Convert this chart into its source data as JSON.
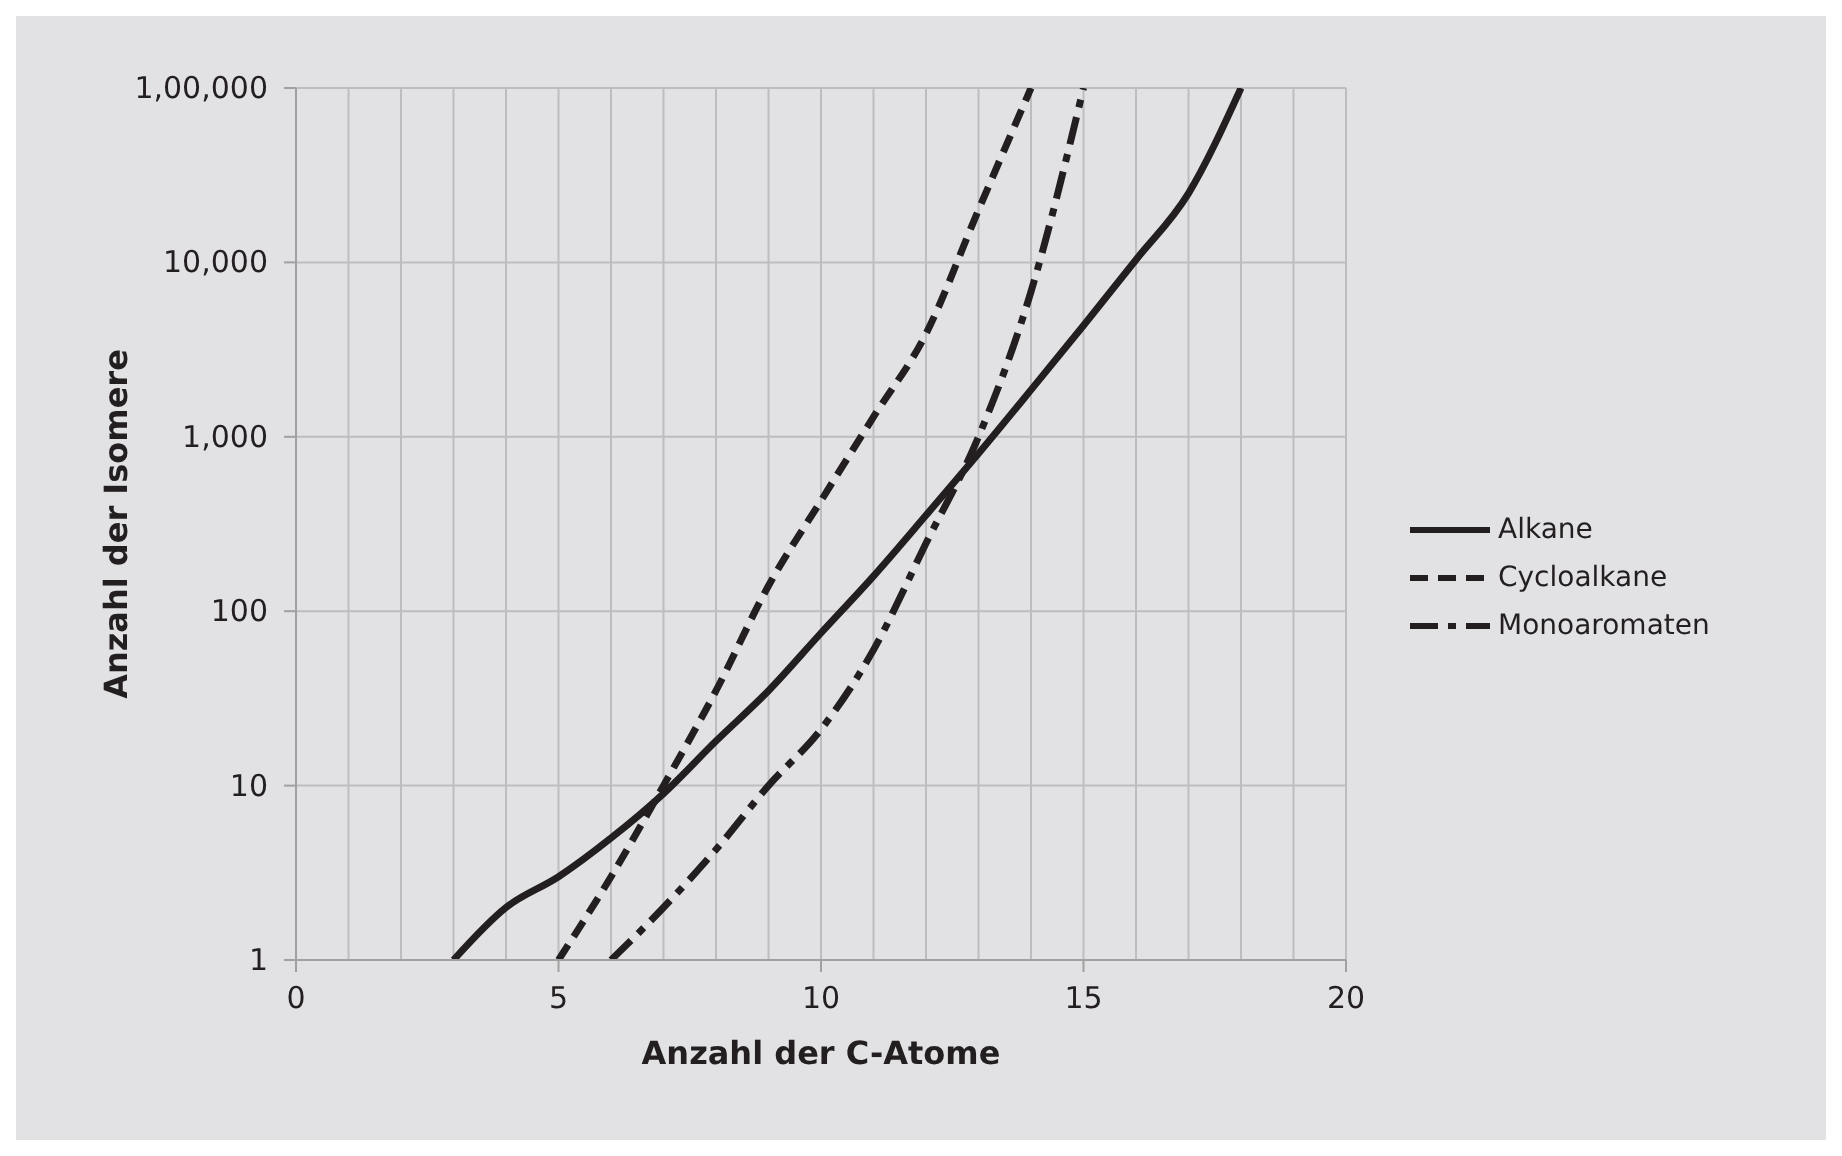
{
  "chart_data": {
    "type": "line",
    "xlabel": "Anzahl der C-Atome",
    "ylabel": "Anzahl der Isomere",
    "log": "y",
    "grid": true,
    "legend": "right",
    "marker": "none",
    "xlim": [
      0,
      20
    ],
    "xticks": [
      0,
      {
        "value": 1,
        "label": null
      },
      {
        "value": 2,
        "label": null
      },
      {
        "value": 3,
        "label": null
      },
      {
        "value": 4,
        "label": null
      },
      5,
      {
        "value": 6,
        "label": null
      },
      {
        "value": 7,
        "label": null
      },
      {
        "value": 8,
        "label": null
      },
      {
        "value": 9,
        "label": null
      },
      10,
      {
        "value": 11,
        "label": null
      },
      {
        "value": 12,
        "label": null
      },
      {
        "value": 13,
        "label": null
      },
      {
        "value": 14,
        "label": null
      },
      15,
      {
        "value": 16,
        "label": null
      },
      {
        "value": 17,
        "label": null
      },
      {
        "value": 18,
        "label": null
      },
      {
        "value": 19,
        "label": null
      },
      20
    ],
    "ylim": [
      1,
      100000
    ],
    "yticks": [
      1,
      10,
      100,
      {
        "value": 1000,
        "label": "1,000"
      },
      {
        "value": 10000,
        "label": "10,000"
      },
      {
        "value": 100000,
        "label": "1,00,000"
      }
    ],
    "series": [
      {
        "name": "Alkane",
        "color": "#231f20",
        "line_style": "solid",
        "x": [
          3,
          4,
          5,
          6,
          7,
          8,
          9,
          10,
          11,
          12,
          13,
          14,
          15,
          16,
          17,
          18
        ],
        "values": [
          1,
          2,
          3,
          5,
          9,
          18,
          35,
          75,
          159,
          355,
          802,
          1858,
          4347,
          10359,
          24894,
          100000
        ]
      },
      {
        "name": "Cycloalkane",
        "color": "#231f20",
        "line_style": "dashed",
        "x": [
          5,
          6,
          7,
          8,
          9,
          10,
          11,
          12,
          13,
          14
        ],
        "values": [
          1,
          3,
          10,
          35,
          140,
          430,
          1300,
          3900,
          20000,
          100000
        ]
      },
      {
        "name": "Monoaromaten",
        "color": "#231f20",
        "line_style": "dashdot",
        "x": [
          6,
          7,
          8,
          9,
          10,
          11,
          12,
          13,
          14,
          15
        ],
        "values": [
          1,
          2,
          4.3,
          10,
          21,
          60,
          245,
          1000,
          6800,
          100000
        ]
      }
    ]
  }
}
